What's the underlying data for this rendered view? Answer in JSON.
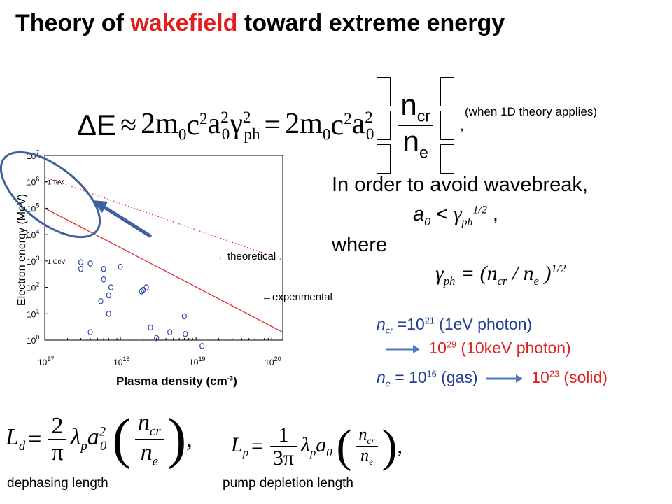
{
  "title": {
    "part1": "Theory of ",
    "accent": "wakefield",
    "part2": " toward extreme energy"
  },
  "main_equation": {
    "lhs": "ΔE",
    "approx": "≈",
    "term1": "2m",
    "term1_sub": "0",
    "c2": "c",
    "c2_sup": "2",
    "a0": "a",
    "a0_sub": "0",
    "gamma": "γ",
    "gamma_sup": "2",
    "gamma_sub": "ph",
    "equals": "=",
    "term2": "2m",
    "term2_sub": "0",
    "num": "n",
    "num_sub": "cr",
    "den": "n",
    "den_sub": "e",
    "comma": ","
  },
  "note_1d": "(when 1D theory applies)",
  "wavebreak": {
    "line1": "In order to avoid wavebreak,",
    "a0": "a",
    "a0_sub": "0",
    "lt": " < ",
    "gamma": "γ",
    "gamma_sub": "ph",
    "gamma_sup": "1/2",
    "comma": " ,",
    "where": "where",
    "gph": "γ",
    "gph_sub": "ph",
    "gph_eq": " = (n",
    "ncr_sub": "cr",
    "slash": " / n",
    "ne_sub": "e",
    "close": " )",
    "close_sup": "1/2"
  },
  "densities": {
    "ncr_label": "n",
    "ncr_sub": "cr",
    "ncr_eq": " =10",
    "ncr_exp": "21",
    "ncr_note": " (1eV photon)",
    "ncr2_val": "10",
    "ncr2_exp": "29",
    "ncr2_note": " (10keV photon)",
    "ne_label": "n",
    "ne_sub": "e",
    "ne_eq": " = 10",
    "ne_exp": "16",
    "ne_note": " (gas)",
    "solid_val": "10",
    "solid_exp": "23",
    "solid_note": " (solid)"
  },
  "chart": {
    "ylabel": "Electron energy (MeV)",
    "xlabel": "Plasma density (cm",
    "xlabel_sup": "-3",
    "xlabel_close": ")",
    "tev_label": "1 TeV",
    "gev_label": "1 GeV",
    "theoretical_label": "←theoretical",
    "experimental_label": "←experimental",
    "y_ticks": [
      {
        "base": "10",
        "exp": "0"
      },
      {
        "base": "10",
        "exp": "1"
      },
      {
        "base": "10",
        "exp": "2"
      },
      {
        "base": "10",
        "exp": "3"
      },
      {
        "base": "10",
        "exp": "4"
      },
      {
        "base": "10",
        "exp": "5"
      },
      {
        "base": "10",
        "exp": "6"
      },
      {
        "base": "10",
        "exp": "7"
      }
    ],
    "x_ticks": [
      {
        "base": "10",
        "exp": "17"
      },
      {
        "base": "10",
        "exp": "18"
      },
      {
        "base": "10",
        "exp": "19"
      },
      {
        "base": "10",
        "exp": "20"
      }
    ]
  },
  "chart_data": {
    "type": "scatter",
    "xlabel": "Plasma density (cm-3)",
    "ylabel": "Electron energy (MeV)",
    "log_x": true,
    "log_y": true,
    "xlim": [
      1e+17,
      1.4e+20
    ],
    "ylim": [
      1,
      10000000.0
    ],
    "series": [
      {
        "name": "theoretical",
        "kind": "line",
        "style": "dotted",
        "color": "#e0201f",
        "x": [
          1e+17,
          1.4e+20
        ],
        "y": [
          1500000,
          1100
        ]
      },
      {
        "name": "",
        "kind": "line",
        "style": "solid",
        "color": "#e0201f",
        "x": [
          1e+17,
          1.4e+20
        ],
        "y": [
          100000,
          2
        ]
      },
      {
        "name": "experimental",
        "kind": "scatter",
        "color": "#1f3fa8",
        "x": [
          3e+17,
          3e+17,
          4e+17,
          4e+17,
          5.5e+17,
          6e+17,
          6e+17,
          7e+17,
          7e+17,
          7.5e+17,
          1e+18,
          1.9e+18,
          2e+18,
          2.2e+18,
          2.5e+18,
          3e+18,
          4.5e+18,
          7e+18,
          7.2e+18,
          1.2e+19
        ],
        "y": [
          500,
          900,
          2,
          800,
          30,
          200,
          500,
          10,
          50,
          100,
          600,
          70,
          80,
          100,
          3,
          1.2,
          2,
          8,
          1.7,
          0.6
        ]
      }
    ]
  },
  "formulas": {
    "ld_lhs": "L",
    "ld_sub": "d",
    "ld_eq": " = ",
    "ld_num": "2",
    "ld_den": "π",
    "ld_rest": "λ",
    "ld_rest_sub": "p",
    "ld_a": "a",
    "ld_a_sub": "0",
    "ld_a_sup": "2",
    "lp_lhs": "L",
    "lp_sub": "p",
    "lp_eq": " = ",
    "lp_num": "1",
    "lp_den": "3π",
    "lp_rest": "λ",
    "lp_rest_sub": "p",
    "lp_a": "a",
    "lp_a_sub": "0",
    "frac_num": "n",
    "frac_num_sub": "cr",
    "frac_den": "n",
    "frac_den_sub": "e",
    "comma": ","
  },
  "captions": {
    "dephasing": "dephasing length",
    "pump": "pump depletion length"
  },
  "colors": {
    "accent": "#e0201f",
    "annotation": "#3f5f9f",
    "points": "#1f3fa8"
  }
}
